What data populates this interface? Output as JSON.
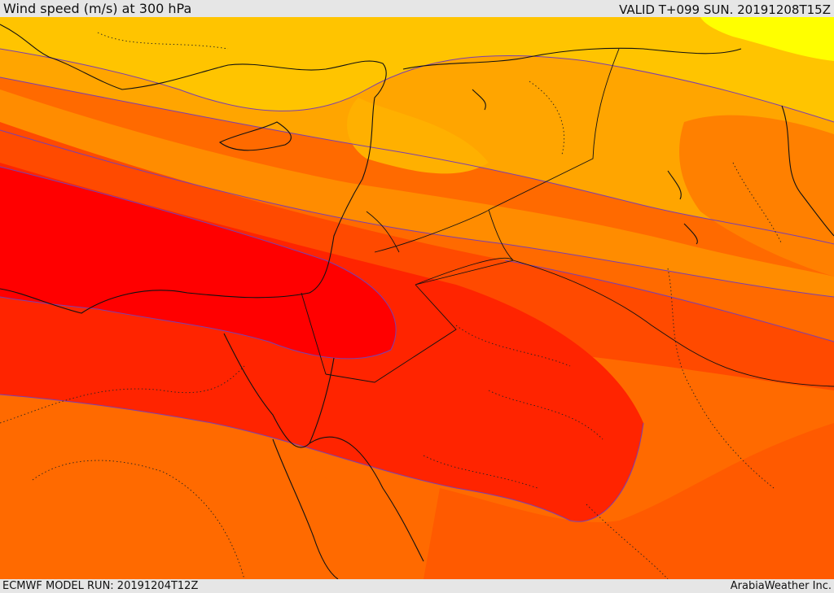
{
  "header": {
    "title": "Wind speed (m/s) at 300 hPa",
    "valid": "VALID T+099 SUN. 20191208T15Z"
  },
  "footer": {
    "model_run": "ECMWF MODEL RUN: 20191204T12Z",
    "credit": "ArabiaWeather Inc."
  },
  "map": {
    "field": "wind speed",
    "level": "300 hPa",
    "palette": [
      "#ffff00",
      "#ffc400",
      "#ffa500",
      "#ff8c00",
      "#ff6a00",
      "#ff4a00",
      "#ff2400",
      "#ff0000"
    ],
    "contour_color": "#7a3fb0",
    "coastline_color": "#111111",
    "border_style": "dotted"
  }
}
